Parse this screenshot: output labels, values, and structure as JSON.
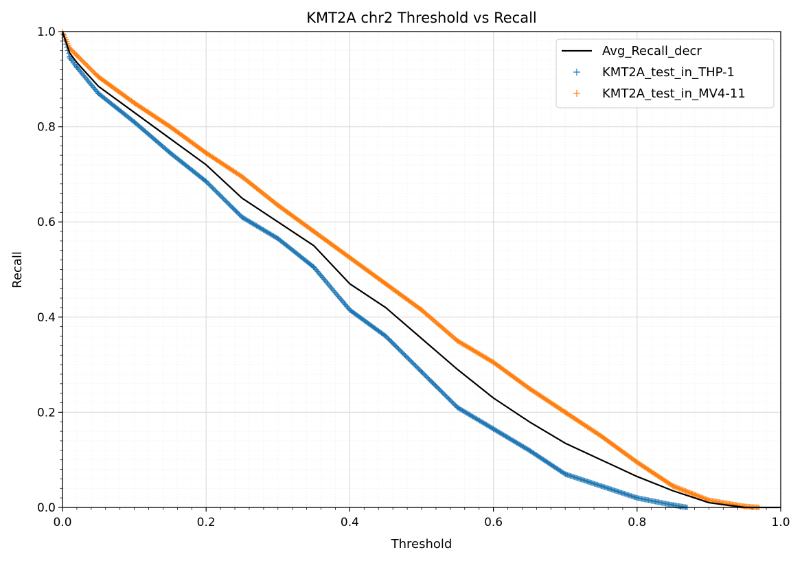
{
  "chart_data": {
    "type": "line",
    "title": "KMT2A chr2 Threshold vs Recall",
    "xlabel": "Threshold",
    "ylabel": "Recall",
    "xlim": [
      0.0,
      1.0
    ],
    "ylim": [
      0.0,
      1.0
    ],
    "xticks": [
      "0.0",
      "0.2",
      "0.4",
      "0.6",
      "0.8",
      "1.0"
    ],
    "yticks": [
      "0.0",
      "0.2",
      "0.4",
      "0.6",
      "0.8",
      "1.0"
    ],
    "grid": true,
    "minor_grid": true,
    "legend_position": "top-right",
    "series": [
      {
        "name": "Avg_Recall_decr",
        "style": "line",
        "color": "#000000",
        "x": [
          0.0,
          0.01,
          0.02,
          0.05,
          0.1,
          0.15,
          0.2,
          0.25,
          0.3,
          0.35,
          0.4,
          0.45,
          0.5,
          0.55,
          0.6,
          0.65,
          0.7,
          0.75,
          0.8,
          0.85,
          0.9,
          0.95,
          1.0
        ],
        "y": [
          1.0,
          0.955,
          0.935,
          0.885,
          0.83,
          0.775,
          0.72,
          0.65,
          0.6,
          0.55,
          0.47,
          0.42,
          0.355,
          0.29,
          0.23,
          0.18,
          0.135,
          0.1,
          0.065,
          0.035,
          0.01,
          0.0,
          0.0
        ]
      },
      {
        "name": "KMT2A_test_in_THP-1",
        "style": "markers",
        "marker": "+",
        "color": "#1f77b4",
        "x": [
          0.0,
          0.01,
          0.02,
          0.05,
          0.1,
          0.15,
          0.2,
          0.25,
          0.3,
          0.35,
          0.4,
          0.45,
          0.5,
          0.55,
          0.6,
          0.65,
          0.7,
          0.75,
          0.8,
          0.85,
          0.87
        ],
        "y": [
          1.0,
          0.945,
          0.925,
          0.87,
          0.81,
          0.745,
          0.685,
          0.61,
          0.565,
          0.505,
          0.415,
          0.36,
          0.285,
          0.21,
          0.165,
          0.12,
          0.07,
          0.045,
          0.02,
          0.005,
          0.0
        ]
      },
      {
        "name": "KMT2A_test_in_MV4-11",
        "style": "markers",
        "marker": "+",
        "color": "#ff7f0e",
        "x": [
          0.0,
          0.01,
          0.02,
          0.05,
          0.1,
          0.15,
          0.2,
          0.25,
          0.3,
          0.35,
          0.4,
          0.45,
          0.5,
          0.55,
          0.6,
          0.65,
          0.7,
          0.75,
          0.8,
          0.85,
          0.9,
          0.95,
          0.97
        ],
        "y": [
          1.0,
          0.965,
          0.95,
          0.905,
          0.85,
          0.8,
          0.745,
          0.695,
          0.635,
          0.58,
          0.525,
          0.47,
          0.415,
          0.35,
          0.305,
          0.25,
          0.2,
          0.15,
          0.095,
          0.045,
          0.015,
          0.002,
          0.0
        ]
      }
    ]
  }
}
